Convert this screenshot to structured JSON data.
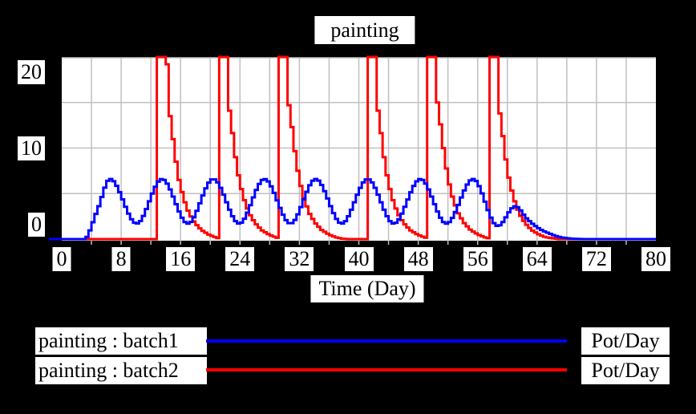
{
  "title": "painting",
  "colors": {
    "background": "#000000",
    "plot_background": "#ffffff",
    "grid": "#c0c0c0",
    "batch1": "#0000ff",
    "batch2": "#ff0000",
    "text": "#000000",
    "label_background": "#ffffff"
  },
  "axes": {
    "x_label": "Time (Day)",
    "x_ticks": [
      0,
      8,
      16,
      24,
      32,
      40,
      48,
      56,
      64,
      72,
      80
    ],
    "y_ticks": [
      0,
      10,
      20
    ],
    "x_grid_step": 4,
    "y_grid_step": 5
  },
  "legend": [
    {
      "label": "painting : batch1",
      "units": "Pot/Day",
      "color": "#0000ff"
    },
    {
      "label": "painting : batch2",
      "units": "Pot/Day",
      "color": "#ff0000"
    }
  ],
  "chart_data": {
    "type": "line",
    "title": "painting",
    "xlabel": "Time (Day)",
    "ylabel": "",
    "xlim": [
      0,
      80
    ],
    "ylim": [
      0,
      20
    ],
    "grid": true,
    "legend_position": "bottom",
    "note": "values above 20 are clipped at the top of the plot; curves drawn as simulation steps",
    "series": [
      {
        "name": "painting : batch1",
        "units": "Pot/Day",
        "color": "#0000ff",
        "interp": "spline",
        "points": [
          [
            0,
            0
          ],
          [
            1.5,
            0
          ],
          [
            3,
            0
          ],
          [
            4.6,
            3.2
          ],
          [
            6.4,
            6.6
          ],
          [
            9.9,
            1.7
          ],
          [
            13.3,
            6.6
          ],
          [
            16.8,
            1.7
          ],
          [
            20.2,
            6.6
          ],
          [
            23.7,
            1.7
          ],
          [
            27.1,
            6.6
          ],
          [
            30.6,
            1.7
          ],
          [
            34,
            6.6
          ],
          [
            37.5,
            1.7
          ],
          [
            41,
            6.6
          ],
          [
            44.5,
            1.7
          ],
          [
            48.1,
            6.6
          ],
          [
            51.6,
            1.7
          ],
          [
            55.2,
            6.6
          ],
          [
            58.3,
            1.5
          ],
          [
            60.8,
            3.6
          ],
          [
            62.5,
            2.2
          ],
          [
            64,
            1.2
          ],
          [
            65.5,
            0.6
          ],
          [
            67,
            0.2
          ],
          [
            68.5,
            0.05
          ],
          [
            70,
            0
          ],
          [
            75,
            0
          ],
          [
            80,
            0
          ]
        ]
      },
      {
        "name": "painting : batch2",
        "units": "Pot/Day",
        "color": "#ff0000",
        "interp": "linear",
        "points": [
          [
            0,
            0
          ],
          [
            12.75,
            0
          ],
          [
            12.75,
            22
          ],
          [
            13.9,
            22
          ],
          [
            14.15,
            15
          ],
          [
            14.6,
            12.3
          ],
          [
            15.1,
            9
          ],
          [
            15.6,
            6.5
          ],
          [
            16.2,
            4.5
          ],
          [
            16.9,
            2.9
          ],
          [
            17.7,
            1.8
          ],
          [
            18.6,
            1
          ],
          [
            19.6,
            0.5
          ],
          [
            20.5,
            0.2
          ],
          [
            20.85,
            0.1
          ],
          [
            20.85,
            22
          ],
          [
            22,
            22
          ],
          [
            22.25,
            15
          ],
          [
            22.7,
            12.3
          ],
          [
            23.2,
            9
          ],
          [
            23.7,
            6.5
          ],
          [
            24.3,
            4.5
          ],
          [
            25,
            2.9
          ],
          [
            25.8,
            1.8
          ],
          [
            26.7,
            1
          ],
          [
            27.7,
            0.5
          ],
          [
            28.6,
            0.2
          ],
          [
            28.95,
            0.1
          ],
          [
            28.95,
            22
          ],
          [
            30.1,
            22
          ],
          [
            30.35,
            15
          ],
          [
            30.8,
            12.3
          ],
          [
            31.3,
            9
          ],
          [
            31.8,
            6.5
          ],
          [
            32.4,
            4.5
          ],
          [
            33.1,
            2.9
          ],
          [
            33.9,
            1.8
          ],
          [
            34.8,
            1
          ],
          [
            35.8,
            0.5
          ],
          [
            36.7,
            0.2
          ],
          [
            37.5,
            0.05
          ],
          [
            38.5,
            0
          ],
          [
            40.85,
            0
          ],
          [
            40.85,
            22
          ],
          [
            42,
            22
          ],
          [
            42.25,
            15
          ],
          [
            42.7,
            12.3
          ],
          [
            43.2,
            9
          ],
          [
            43.7,
            6.5
          ],
          [
            44.3,
            4.5
          ],
          [
            45,
            2.9
          ],
          [
            45.8,
            1.8
          ],
          [
            46.7,
            1
          ],
          [
            47.7,
            0.5
          ],
          [
            48.6,
            0.2
          ],
          [
            49,
            0.1
          ],
          [
            49,
            22
          ],
          [
            50.15,
            22
          ],
          [
            50.4,
            15
          ],
          [
            50.85,
            12.3
          ],
          [
            51.35,
            9
          ],
          [
            51.85,
            6.5
          ],
          [
            52.45,
            4.5
          ],
          [
            53.15,
            2.9
          ],
          [
            53.95,
            1.8
          ],
          [
            54.85,
            1
          ],
          [
            55.85,
            0.5
          ],
          [
            56.75,
            0.2
          ],
          [
            57.2,
            0.1
          ],
          [
            57.2,
            22
          ],
          [
            58.35,
            22
          ],
          [
            58.6,
            15
          ],
          [
            59.05,
            12.3
          ],
          [
            59.55,
            9
          ],
          [
            60.05,
            6.5
          ],
          [
            60.65,
            4.5
          ],
          [
            61.35,
            2.9
          ],
          [
            62.15,
            1.8
          ],
          [
            63.05,
            1
          ],
          [
            64.05,
            0.5
          ],
          [
            64.95,
            0.2
          ],
          [
            65.8,
            0.1
          ],
          [
            66.8,
            0
          ],
          [
            80,
            0
          ]
        ]
      }
    ]
  }
}
